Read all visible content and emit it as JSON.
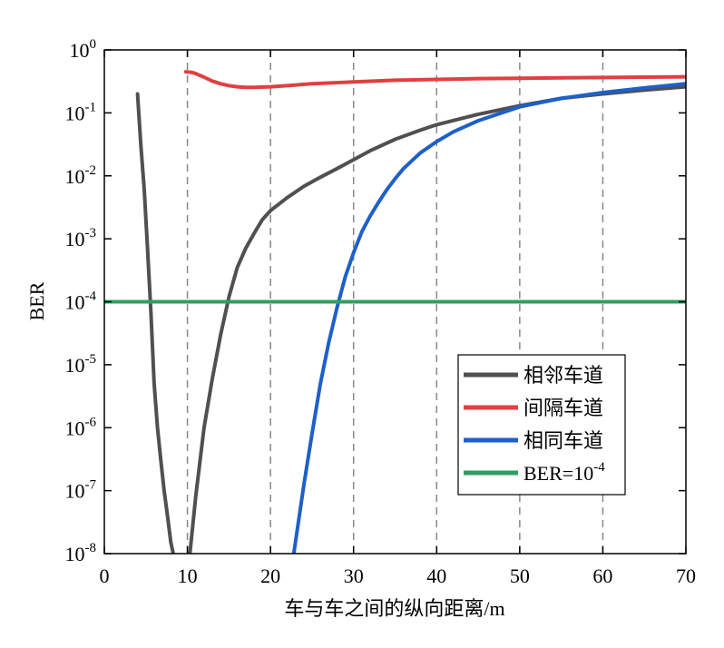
{
  "chart_data": {
    "type": "line",
    "xlabel": "车与车之间的纵向距离/m",
    "ylabel": "BER",
    "xlim": [
      0,
      70
    ],
    "ylim": [
      1e-08,
      1
    ],
    "yscale": "log",
    "xticks": [
      "0",
      "10",
      "20",
      "30",
      "40",
      "50",
      "60",
      "70"
    ],
    "yticks": [
      {
        "base": "10",
        "exp": "0"
      },
      {
        "base": "10",
        "exp": "-1"
      },
      {
        "base": "10",
        "exp": "-2"
      },
      {
        "base": "10",
        "exp": "-3"
      },
      {
        "base": "10",
        "exp": "-4"
      },
      {
        "base": "10",
        "exp": "-5"
      },
      {
        "base": "10",
        "exp": "-6"
      },
      {
        "base": "10",
        "exp": "-7"
      },
      {
        "base": "10",
        "exp": "-8"
      }
    ],
    "grid": {
      "vertical_dashed_at": [
        10,
        20,
        30,
        40,
        50,
        60
      ]
    },
    "legend_position": "lower-right",
    "series": [
      {
        "name": "相邻车道",
        "color": "#505050",
        "x": [
          4,
          4.4,
          4.8,
          5.2,
          5.6,
          6,
          6.4,
          6.8,
          7.2,
          7.6,
          8,
          8.3
        ],
        "y": [
          0.2,
          0.03,
          0.006,
          0.0007,
          7e-05,
          5e-06,
          1e-06,
          3e-07,
          1e-07,
          4e-08,
          1.5e-08,
          1e-08
        ]
      },
      {
        "name": "相邻车道",
        "color": "#505050",
        "x": [
          10.3,
          11,
          12,
          13,
          14,
          15,
          16,
          17,
          18,
          19,
          20,
          22,
          24,
          26,
          28,
          30,
          32,
          35,
          38,
          40,
          45,
          50,
          55,
          60,
          65,
          70
        ],
        "y": [
          1e-08,
          8e-08,
          1e-06,
          6e-06,
          3e-05,
          0.00012,
          0.00035,
          0.0007,
          0.0012,
          0.002,
          0.0028,
          0.0045,
          0.0068,
          0.0095,
          0.013,
          0.018,
          0.025,
          0.038,
          0.053,
          0.065,
          0.095,
          0.13,
          0.17,
          0.2,
          0.23,
          0.26
        ]
      },
      {
        "name": "间隔车道",
        "color": "#e04040",
        "x": [
          9.8,
          10.5,
          11,
          12,
          13,
          14,
          15,
          16,
          17,
          18,
          20,
          22,
          25,
          30,
          35,
          40,
          45,
          50,
          55,
          60,
          65,
          70
        ],
        "y": [
          0.45,
          0.44,
          0.42,
          0.37,
          0.32,
          0.29,
          0.27,
          0.26,
          0.255,
          0.255,
          0.26,
          0.27,
          0.29,
          0.31,
          0.33,
          0.34,
          0.35,
          0.355,
          0.36,
          0.365,
          0.37,
          0.375
        ]
      },
      {
        "name": "相同车道",
        "color": "#1e60c8",
        "x": [
          22.8,
          24,
          25,
          26,
          27,
          28,
          29,
          30,
          31,
          32,
          33,
          34,
          35,
          36,
          38,
          40,
          42,
          45,
          50,
          55,
          60,
          65,
          70
        ],
        "y": [
          1e-08,
          1.2e-07,
          8e-07,
          5e-06,
          2.2e-05,
          8e-05,
          0.00025,
          0.0006,
          0.0013,
          0.0023,
          0.0038,
          0.006,
          0.009,
          0.013,
          0.023,
          0.035,
          0.05,
          0.075,
          0.125,
          0.17,
          0.21,
          0.25,
          0.29
        ]
      },
      {
        "name": "BER=10",
        "name_sup": "-4",
        "color": "#2e9e60",
        "x": [
          0,
          70
        ],
        "y": [
          0.0001,
          0.0001
        ]
      }
    ]
  }
}
